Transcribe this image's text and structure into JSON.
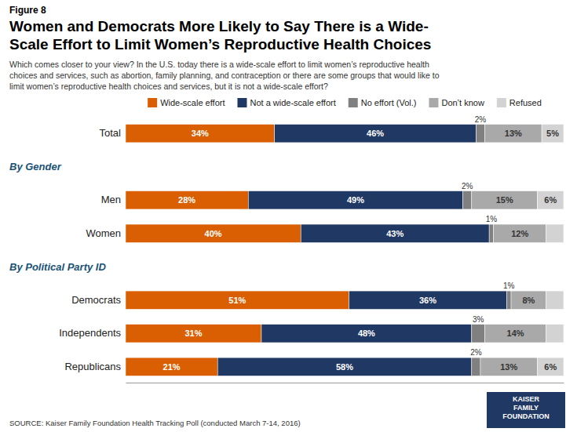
{
  "chart_data": {
    "type": "bar",
    "orientation": "horizontal",
    "stacked": true,
    "data_labels": true,
    "tick_labels": "y",
    "grid": false,
    "legend": "top",
    "figure_label": "Figure 8",
    "title": "Women and Democrats More Likely to Say There is a Wide-\nScale Effort to Limit Women’s Reproductive Health Choices",
    "subtitle": "Which comes closer to your view?  In the U.S. today there is a wide-scale effort to limit women’s reproductive health\nchoices and services, such as abortion, family planning, and contraception or there are some groups that would like to\nlimit women’s reproductive health choices and services, but it is not a wide-scale effort?",
    "source": "SOURCE: Kaiser Family Foundation Health Tracking Poll (conducted March 7-14, 2016)",
    "logo": "KAISER\nFAMILY\nFOUNDATION",
    "categories": [
      "Total",
      "Men",
      "Women",
      "Democrats",
      "Independents",
      "Republicans"
    ],
    "groups": [
      {
        "label": "By Gender",
        "categories": [
          "Men",
          "Women"
        ]
      },
      {
        "label": "By Political Party ID",
        "categories": [
          "Democrats",
          "Independents",
          "Republicans"
        ]
      }
    ],
    "series": [
      {
        "name": "Wide-scale effort",
        "color": "#d95f02",
        "values": [
          34,
          28,
          40,
          51,
          31,
          21
        ],
        "value_labels": [
          "34%",
          "28%",
          "40%",
          "51%",
          "31%",
          "21%"
        ]
      },
      {
        "name": "Not a wide-scale effort",
        "color": "#1f3864",
        "values": [
          46,
          49,
          43,
          36,
          48,
          58
        ],
        "value_labels": [
          "46%",
          "49%",
          "43%",
          "36%",
          "48%",
          "58%"
        ]
      },
      {
        "name": "No effort (Vol.)",
        "color": "#808080",
        "values": [
          2,
          2,
          1,
          1,
          3,
          2
        ],
        "value_labels": [
          "2%",
          "2%",
          "1%",
          "1%",
          "3%",
          "2%"
        ]
      },
      {
        "name": "Don’t know",
        "color": "#a9a9a9",
        "values": [
          13,
          15,
          12,
          8,
          14,
          13
        ],
        "value_labels": [
          "13%",
          "15%",
          "12%",
          "8%",
          "14%",
          "13%"
        ]
      },
      {
        "name": "Refused",
        "color": "#d3d3d3",
        "values": [
          5,
          6,
          4,
          4,
          4,
          6
        ],
        "value_labels": [
          "5%",
          "6%",
          null,
          null,
          null,
          "6%"
        ]
      }
    ],
    "xlim": [
      0,
      100
    ]
  }
}
